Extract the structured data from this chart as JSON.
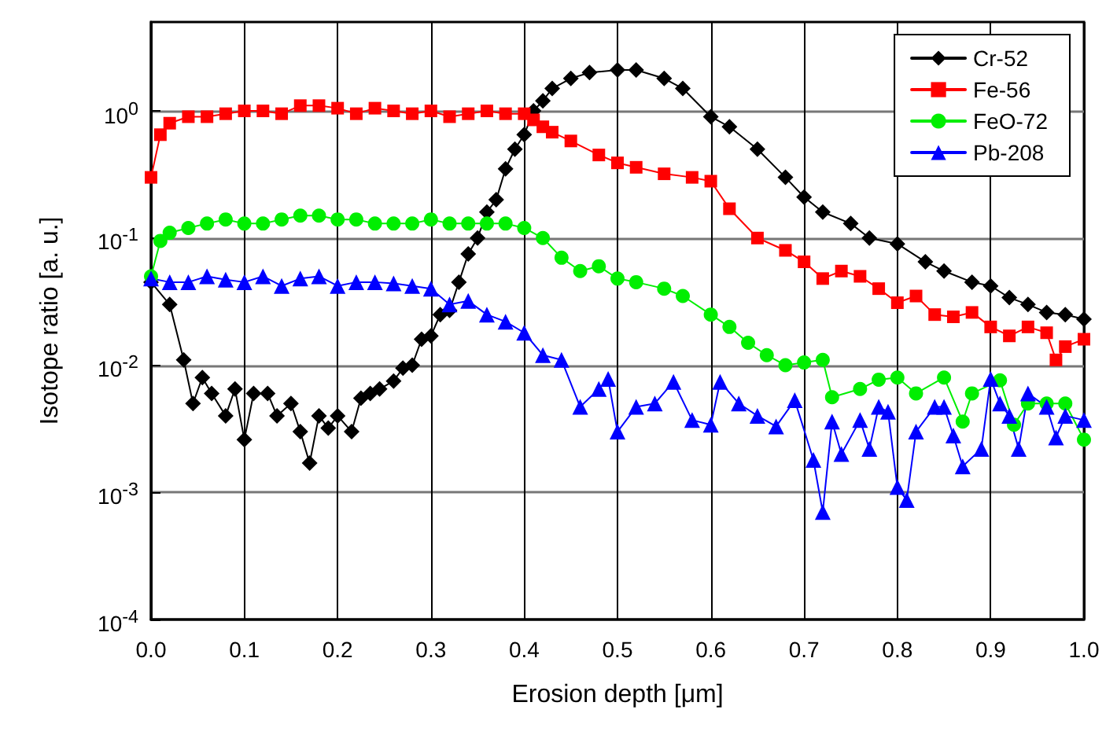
{
  "chart_data": {
    "type": "line",
    "xlabel": "Erosion depth [μm]",
    "ylabel": "Isotope ratio [a. u.]",
    "log": "y",
    "xlim": [
      0,
      1
    ],
    "xticks": [
      {
        "value": 0,
        "label": "0.0"
      },
      0.1,
      0.2,
      0.3,
      0.4,
      0.5,
      0.6,
      0.7,
      0.8,
      0.9,
      {
        "value": 1,
        "label": "1.0"
      }
    ],
    "ylim": [
      0.0001,
      5
    ],
    "yticks": [
      {
        "value": 0.0001,
        "label": "10$^{-4}$"
      },
      {
        "value": 0.001,
        "label": "10$^{-3}$"
      },
      {
        "value": 0.01,
        "label": "10$^{-2}$"
      },
      {
        "value": 0.1,
        "label": "10$^{-1}$"
      },
      {
        "value": 1,
        "label": "10$^{0}$"
      }
    ],
    "grid": true,
    "legend": "top right",
    "line_style": "solid",
    "series": [
      {
        "name": "Cr-52",
        "color": "#000000",
        "marker": "diamond",
        "x": [
          0,
          0.02,
          0.035,
          0.045,
          0.055,
          0.065,
          0.08,
          0.09,
          0.1,
          0.11,
          0.125,
          0.135,
          0.15,
          0.16,
          0.17,
          0.18,
          0.19,
          0.2,
          0.215,
          0.225,
          0.235,
          0.245,
          0.26,
          0.27,
          0.28,
          0.29,
          0.3,
          0.31,
          0.32,
          0.33,
          0.34,
          0.35,
          0.36,
          0.37,
          0.38,
          0.39,
          0.4,
          0.41,
          0.42,
          0.43,
          0.45,
          0.47,
          0.5,
          0.52,
          0.55,
          0.57,
          0.6,
          0.62,
          0.65,
          0.68,
          0.7,
          0.72,
          0.75,
          0.77,
          0.8,
          0.83,
          0.85,
          0.88,
          0.9,
          0.92,
          0.94,
          0.96,
          0.98,
          1
        ],
        "values": [
          0.045,
          0.03,
          0.011,
          0.005,
          0.008,
          0.006,
          0.004,
          0.0065,
          0.0026,
          0.006,
          0.006,
          0.004,
          0.005,
          0.003,
          0.0017,
          0.004,
          0.0032,
          0.004,
          0.003,
          0.0055,
          0.006,
          0.0065,
          0.0075,
          0.0095,
          0.01,
          0.016,
          0.017,
          0.025,
          0.027,
          0.045,
          0.075,
          0.1,
          0.16,
          0.2,
          0.35,
          0.5,
          0.65,
          1,
          1.2,
          1.5,
          1.8,
          2,
          2.1,
          2.1,
          1.8,
          1.5,
          0.9,
          0.75,
          0.5,
          0.3,
          0.21,
          0.16,
          0.13,
          0.1,
          0.09,
          0.065,
          0.055,
          0.045,
          0.042,
          0.034,
          0.03,
          0.026,
          0.025,
          0.023
        ]
      },
      {
        "name": "Fe-56",
        "color": "#ff0000",
        "marker": "square",
        "x": [
          0,
          0.01,
          0.02,
          0.04,
          0.06,
          0.08,
          0.1,
          0.12,
          0.14,
          0.16,
          0.18,
          0.2,
          0.22,
          0.24,
          0.26,
          0.28,
          0.3,
          0.32,
          0.34,
          0.36,
          0.38,
          0.4,
          0.41,
          0.42,
          0.43,
          0.45,
          0.48,
          0.5,
          0.52,
          0.55,
          0.58,
          0.6,
          0.62,
          0.65,
          0.68,
          0.7,
          0.72,
          0.74,
          0.76,
          0.78,
          0.8,
          0.82,
          0.84,
          0.86,
          0.88,
          0.9,
          0.92,
          0.94,
          0.96,
          0.97,
          0.98,
          1
        ],
        "values": [
          0.3,
          0.65,
          0.8,
          0.9,
          0.9,
          0.95,
          1,
          1,
          0.95,
          1.1,
          1.1,
          1.05,
          0.95,
          1.05,
          1,
          0.95,
          1,
          0.9,
          0.95,
          1,
          0.95,
          0.95,
          0.85,
          0.75,
          0.68,
          0.58,
          0.45,
          0.39,
          0.36,
          0.32,
          0.3,
          0.28,
          0.17,
          0.1,
          0.08,
          0.065,
          0.048,
          0.055,
          0.05,
          0.04,
          0.031,
          0.035,
          0.025,
          0.024,
          0.026,
          0.02,
          0.017,
          0.02,
          0.018,
          0.011,
          0.014,
          0.016
        ]
      },
      {
        "name": "FeO-72",
        "color": "#00ee00",
        "marker": "circle",
        "x": [
          0,
          0.01,
          0.02,
          0.04,
          0.06,
          0.08,
          0.1,
          0.12,
          0.14,
          0.16,
          0.18,
          0.2,
          0.22,
          0.24,
          0.26,
          0.28,
          0.3,
          0.32,
          0.34,
          0.36,
          0.38,
          0.4,
          0.42,
          0.44,
          0.46,
          0.48,
          0.5,
          0.52,
          0.55,
          0.57,
          0.6,
          0.62,
          0.64,
          0.66,
          0.68,
          0.7,
          0.72,
          0.73,
          0.76,
          0.78,
          0.8,
          0.82,
          0.85,
          0.87,
          0.88,
          0.91,
          0.925,
          0.94,
          0.96,
          0.98,
          1
        ],
        "values": [
          0.05,
          0.095,
          0.11,
          0.12,
          0.13,
          0.14,
          0.13,
          0.13,
          0.14,
          0.15,
          0.15,
          0.14,
          0.14,
          0.13,
          0.13,
          0.13,
          0.14,
          0.13,
          0.13,
          0.13,
          0.13,
          0.12,
          0.1,
          0.07,
          0.055,
          0.06,
          0.048,
          0.045,
          0.04,
          0.035,
          0.025,
          0.02,
          0.015,
          0.012,
          0.01,
          0.0105,
          0.011,
          0.0056,
          0.0065,
          0.0077,
          0.008,
          0.006,
          0.008,
          0.0036,
          0.006,
          0.0076,
          0.0034,
          0.005,
          0.005,
          0.005,
          0.0026
        ]
      },
      {
        "name": "Pb-208",
        "color": "#0000ff",
        "marker": "triangle",
        "x": [
          0,
          0.02,
          0.04,
          0.06,
          0.08,
          0.1,
          0.12,
          0.14,
          0.16,
          0.18,
          0.2,
          0.22,
          0.24,
          0.26,
          0.28,
          0.3,
          0.32,
          0.34,
          0.36,
          0.38,
          0.4,
          0.42,
          0.44,
          0.46,
          0.48,
          0.49,
          0.5,
          0.52,
          0.54,
          0.56,
          0.58,
          0.6,
          0.61,
          0.63,
          0.65,
          0.67,
          0.69,
          0.71,
          0.72,
          0.73,
          0.74,
          0.76,
          0.77,
          0.78,
          0.79,
          0.8,
          0.81,
          0.82,
          0.84,
          0.85,
          0.86,
          0.87,
          0.89,
          0.9,
          0.91,
          0.92,
          0.93,
          0.94,
          0.96,
          0.97,
          0.98,
          1
        ],
        "values": [
          0.048,
          0.045,
          0.045,
          0.05,
          0.047,
          0.045,
          0.05,
          0.042,
          0.048,
          0.05,
          0.042,
          0.045,
          0.045,
          0.044,
          0.042,
          0.04,
          0.03,
          0.032,
          0.025,
          0.022,
          0.018,
          0.012,
          0.011,
          0.0047,
          0.0065,
          0.0078,
          0.003,
          0.0047,
          0.005,
          0.0074,
          0.0037,
          0.0034,
          0.0074,
          0.005,
          0.004,
          0.0033,
          0.0053,
          0.0018,
          0.0007,
          0.0036,
          0.002,
          0.0037,
          0.0022,
          0.0047,
          0.0043,
          0.0011,
          0.00087,
          0.003,
          0.0047,
          0.0047,
          0.0028,
          0.0016,
          0.0022,
          0.0078,
          0.005,
          0.004,
          0.0022,
          0.006,
          0.0047,
          0.0027,
          0.004,
          0.0037
        ]
      }
    ]
  }
}
